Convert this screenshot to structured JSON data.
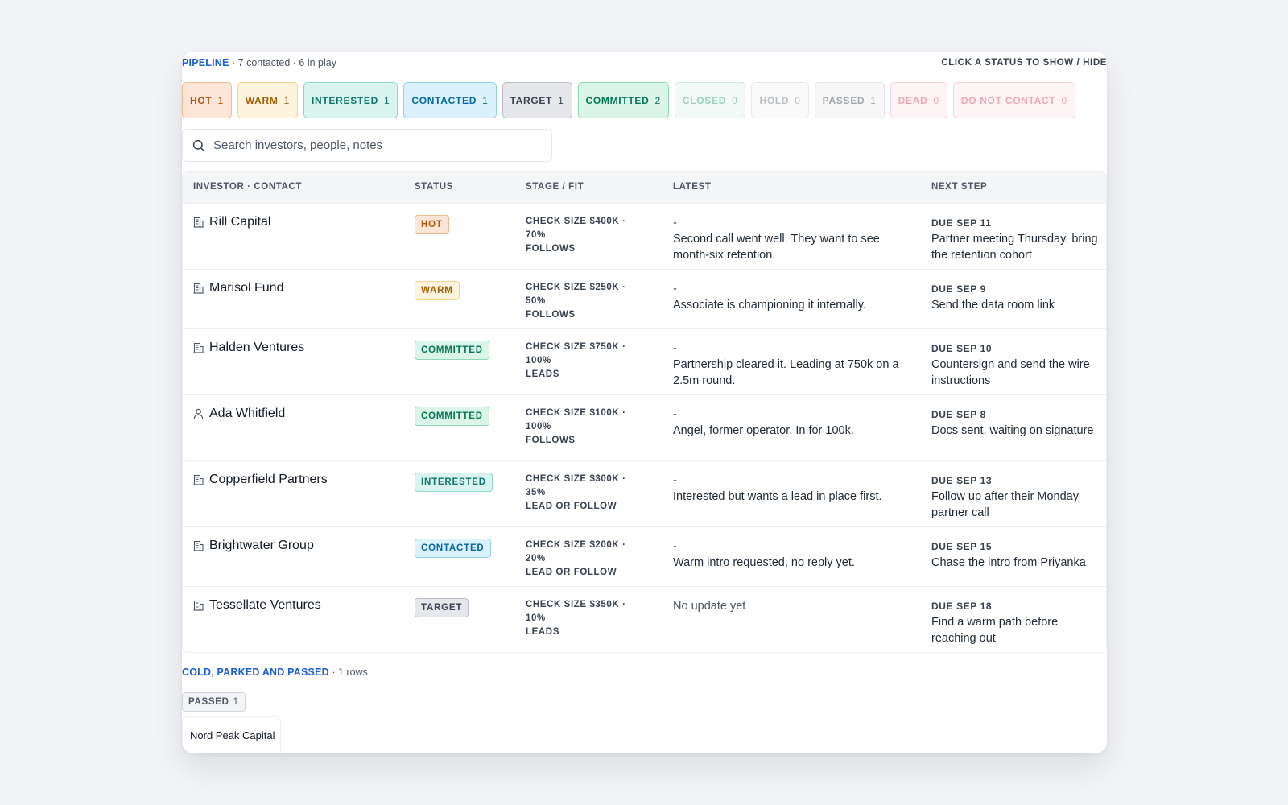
{
  "header": {
    "pipeline_label": "PIPELINE",
    "pipeline_meta": "· 7 contacted · 6 in play",
    "hint": "CLICK A STATUS TO SHOW / HIDE"
  },
  "chips": [
    {
      "label": "HOT",
      "count": "1",
      "name": "hot",
      "text": "#b45309",
      "bg": "#fde6d8",
      "border": "#f5b88f",
      "dim": false
    },
    {
      "label": "WARM",
      "count": "1",
      "name": "warm",
      "text": "#a16207",
      "bg": "#fef3dc",
      "border": "#f7d28d",
      "dim": false
    },
    {
      "label": "INTERESTED",
      "count": "1",
      "name": "interested",
      "text": "#0f766e",
      "bg": "#d9f3ef",
      "border": "#8fd8cc",
      "dim": false
    },
    {
      "label": "CONTACTED",
      "count": "1",
      "name": "contacted",
      "text": "#0369a1",
      "bg": "#dbf1fc",
      "border": "#8fd0ef",
      "dim": false
    },
    {
      "label": "TARGET",
      "count": "1",
      "name": "target",
      "text": "#374151",
      "bg": "#e5e7eb",
      "border": "#b8bcc4",
      "dim": false
    },
    {
      "label": "COMMITTED",
      "count": "2",
      "name": "committed",
      "text": "#047857",
      "bg": "#dcf5e9",
      "border": "#8fd8b5",
      "dim": false
    },
    {
      "label": "CLOSED",
      "count": "0",
      "name": "closed",
      "text": "#9ad2bf",
      "bg": "#f1faf6",
      "border": "#cfeadf",
      "dim": true
    },
    {
      "label": "HOLD",
      "count": "0",
      "name": "hold",
      "text": "#b9bdc4",
      "bg": "#fafafa",
      "border": "#e6e7ea",
      "dim": true
    },
    {
      "label": "PASSED",
      "count": "1",
      "name": "passed",
      "text": "#a1a6ae",
      "bg": "#f7f7f8",
      "border": "#e3e5e8",
      "dim": true
    },
    {
      "label": "DEAD",
      "count": "0",
      "name": "dead",
      "text": "#f0a7b3",
      "bg": "#fdf4f5",
      "border": "#f6d6dc",
      "dim": true
    },
    {
      "label": "DO NOT CONTACT",
      "count": "0",
      "name": "do-not-contact",
      "text": "#f0a7b3",
      "bg": "#fdf4f5",
      "border": "#f6d6dc",
      "dim": true
    }
  ],
  "search": {
    "placeholder": "Search investors, people, notes"
  },
  "columns": {
    "investor": "INVESTOR · CONTACT",
    "status": "STATUS",
    "stage": "STAGE / FIT",
    "latest": "LATEST",
    "next": "NEXT STEP"
  },
  "statuses": {
    "HOT": {
      "text": "#b45309",
      "bg": "#fde6d8",
      "border": "#f5b88f"
    },
    "WARM": {
      "text": "#a16207",
      "bg": "#fef3dc",
      "border": "#f7d28d"
    },
    "COMMITTED": {
      "text": "#047857",
      "bg": "#dcf5e9",
      "border": "#8fd8b5"
    },
    "INTERESTED": {
      "text": "#0f766e",
      "bg": "#d9f3ef",
      "border": "#8fd8cc"
    },
    "CONTACTED": {
      "text": "#0369a1",
      "bg": "#dbf1fc",
      "border": "#8fd0ef"
    },
    "TARGET": {
      "text": "#374151",
      "bg": "#e5e7eb",
      "border": "#b8bcc4"
    }
  },
  "rows": [
    {
      "name": "Rill Capital",
      "icon": "building-icon",
      "status": "HOT",
      "stage_line1": "CHECK SIZE $400K ·",
      "stage_line2": "70%",
      "fit": "FOLLOWS",
      "latest_dash": "-",
      "latest": "Second call went well. They want to see month-six retention.",
      "due": "DUE SEP 11",
      "next": "Partner meeting Thursday, bring the retention cohort"
    },
    {
      "name": "Marisol Fund",
      "icon": "building-icon",
      "status": "WARM",
      "stage_line1": "CHECK SIZE $250K ·",
      "stage_line2": "50%",
      "fit": "FOLLOWS",
      "latest_dash": "-",
      "latest": "Associate is championing it internally.",
      "due": "DUE SEP 9",
      "next": "Send the data room link"
    },
    {
      "name": "Halden Ventures",
      "icon": "building-icon",
      "status": "COMMITTED",
      "stage_line1": "CHECK SIZE $750K ·",
      "stage_line2": "100%",
      "fit": "LEADS",
      "latest_dash": "-",
      "latest": "Partnership cleared it. Leading at 750k on a 2.5m round.",
      "due": "DUE SEP 10",
      "next": "Countersign and send the wire instructions"
    },
    {
      "name": "Ada Whitfield",
      "icon": "person-icon",
      "status": "COMMITTED",
      "stage_line1": "CHECK SIZE $100K ·",
      "stage_line2": "100%",
      "fit": "FOLLOWS",
      "latest_dash": "-",
      "latest": "Angel, former operator. In for 100k.",
      "due": "DUE SEP 8",
      "next": "Docs sent, waiting on signature"
    },
    {
      "name": "Copperfield Partners",
      "icon": "building-icon",
      "status": "INTERESTED",
      "stage_line1": "CHECK SIZE $300K ·",
      "stage_line2": "35%",
      "fit": "LEAD OR FOLLOW",
      "latest_dash": "-",
      "latest": "Interested but wants a lead in place first.",
      "due": "DUE SEP 13",
      "next": "Follow up after their Monday partner call"
    },
    {
      "name": "Brightwater Group",
      "icon": "building-icon",
      "status": "CONTACTED",
      "stage_line1": "CHECK SIZE $200K ·",
      "stage_line2": "20%",
      "fit": "LEAD OR FOLLOW",
      "latest_dash": "-",
      "latest": "Warm intro requested, no reply yet.",
      "due": "DUE SEP 15",
      "next": "Chase the intro from Priyanka"
    },
    {
      "name": "Tessellate Ventures",
      "icon": "building-icon",
      "status": "TARGET",
      "stage_line1": "CHECK SIZE $350K ·",
      "stage_line2": "10%",
      "fit": "LEADS",
      "latest_dash": "",
      "latest": "No update yet",
      "due": "DUE SEP 18",
      "next": "Find a warm path before reaching out"
    }
  ],
  "cold": {
    "label": "COLD, PARKED AND PASSED",
    "meta": "· 1 rows",
    "passed_label": "PASSED",
    "passed_count": "1",
    "items": [
      "Nord Peak Capital"
    ]
  }
}
